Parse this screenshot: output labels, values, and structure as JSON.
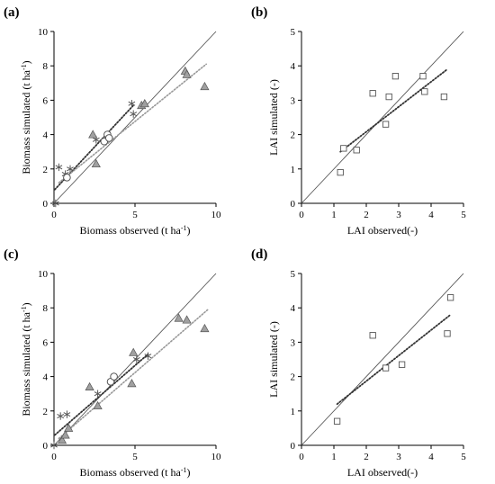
{
  "chart_data": [
    {
      "type": "scatter",
      "panel_label": "(a)",
      "xlabel": "Biomass observed (t ha-1)",
      "ylabel": "Biomass simulated (t ha-1)",
      "xlim": [
        0,
        10
      ],
      "ylim": [
        0,
        10
      ],
      "xticks": [
        "0",
        "5",
        "10"
      ],
      "yticks": [
        "0",
        "2",
        "4",
        "6",
        "8",
        "10"
      ],
      "one_to_one_line": true,
      "series": [
        {
          "marker": "asterisk",
          "points": [
            [
              0.1,
              0
            ],
            [
              0.3,
              2.1
            ],
            [
              0.7,
              1.7
            ],
            [
              1.0,
              2.0
            ],
            [
              2.6,
              3.7
            ],
            [
              4.8,
              5.8
            ],
            [
              4.9,
              5.2
            ]
          ]
        },
        {
          "marker": "circle",
          "points": [
            [
              3.1,
              3.6
            ],
            [
              3.3,
              4.0
            ],
            [
              3.4,
              3.8
            ],
            [
              0.8,
              1.5
            ]
          ]
        },
        {
          "marker": "triangle",
          "points": [
            [
              2.4,
              4.0
            ],
            [
              2.6,
              2.3
            ],
            [
              5.4,
              5.7
            ],
            [
              5.6,
              5.8
            ],
            [
              8.1,
              7.7
            ],
            [
              8.2,
              7.5
            ],
            [
              9.3,
              6.8
            ]
          ]
        }
      ],
      "trendlines": [
        {
          "style": "dark-dotted",
          "x": [
            0.05,
            4.9
          ],
          "y": [
            0.8,
            5.7
          ]
        },
        {
          "style": "light-dotted",
          "x": [
            0.3,
            9.4
          ],
          "y": [
            1.2,
            8.1
          ]
        }
      ]
    },
    {
      "type": "scatter",
      "panel_label": "(b)",
      "xlabel": "LAI observed(-)",
      "ylabel": "LAI simulated (-)",
      "xlim": [
        0,
        5
      ],
      "ylim": [
        0,
        5
      ],
      "xticks": [
        "0",
        "1",
        "2",
        "3",
        "4",
        "5"
      ],
      "yticks": [
        "0",
        "1",
        "2",
        "3",
        "4",
        "5"
      ],
      "one_to_one_line": true,
      "series": [
        {
          "marker": "square",
          "points": [
            [
              1.2,
              0.9
            ],
            [
              1.3,
              1.6
            ],
            [
              1.7,
              1.55
            ],
            [
              2.2,
              3.2
            ],
            [
              2.6,
              2.3
            ],
            [
              2.7,
              3.1
            ],
            [
              2.9,
              3.7
            ],
            [
              3.75,
              3.7
            ],
            [
              3.8,
              3.25
            ],
            [
              4.4,
              3.1
            ]
          ]
        }
      ],
      "trendlines": [
        {
          "style": "dark-dotted",
          "x": [
            1.2,
            4.5
          ],
          "y": [
            1.5,
            3.9
          ]
        }
      ]
    },
    {
      "type": "scatter",
      "panel_label": "(c)",
      "xlabel": "Biomass observed (t ha-1)",
      "ylabel": "Biomass simulated (t ha-1)",
      "xlim": [
        0,
        10
      ],
      "ylim": [
        0,
        10
      ],
      "xticks": [
        "0",
        "5",
        "10"
      ],
      "yticks": [
        "0",
        "2",
        "4",
        "6",
        "8",
        "10"
      ],
      "one_to_one_line": true,
      "series": [
        {
          "marker": "asterisk",
          "points": [
            [
              0,
              0
            ],
            [
              0.4,
              1.7
            ],
            [
              0.8,
              1.8
            ],
            [
              2.7,
              3.0
            ],
            [
              5.1,
              5.0
            ],
            [
              5.8,
              5.2
            ]
          ]
        },
        {
          "marker": "circle",
          "points": [
            [
              3.5,
              3.7
            ],
            [
              3.7,
              4.0
            ]
          ]
        },
        {
          "marker": "triangle",
          "points": [
            [
              0.5,
              0.3
            ],
            [
              0.7,
              0.6
            ],
            [
              0.9,
              1.0
            ],
            [
              2.2,
              3.4
            ],
            [
              2.7,
              2.3
            ],
            [
              4.8,
              3.6
            ],
            [
              4.9,
              5.4
            ],
            [
              7.7,
              7.4
            ],
            [
              8.2,
              7.3
            ],
            [
              9.3,
              6.8
            ]
          ]
        }
      ],
      "trendlines": [
        {
          "style": "dark-dotted",
          "x": [
            0.05,
            5.8
          ],
          "y": [
            0.6,
            5.3
          ]
        },
        {
          "style": "light-dotted",
          "x": [
            0.3,
            9.5
          ],
          "y": [
            0.4,
            7.9
          ]
        }
      ]
    },
    {
      "type": "scatter",
      "panel_label": "(d)",
      "xlabel": "LAI observed(-)",
      "ylabel": "LAI simulated (-)",
      "xlim": [
        0,
        5
      ],
      "ylim": [
        0,
        5
      ],
      "xticks": [
        "0",
        "1",
        "2",
        "3",
        "4",
        "5"
      ],
      "yticks": [
        "0",
        "1",
        "2",
        "3",
        "4",
        "5"
      ],
      "one_to_one_line": true,
      "series": [
        {
          "marker": "square",
          "points": [
            [
              1.1,
              0.7
            ],
            [
              2.2,
              3.2
            ],
            [
              2.6,
              2.25
            ],
            [
              3.1,
              2.35
            ],
            [
              4.5,
              3.25
            ],
            [
              4.6,
              4.3
            ]
          ]
        }
      ],
      "trendlines": [
        {
          "style": "dark-dotted",
          "x": [
            1.1,
            4.6
          ],
          "y": [
            1.2,
            3.8
          ]
        }
      ]
    }
  ],
  "colors": {
    "axis": "#000000",
    "one_to_one": "#555555",
    "trend_dark": "#333333",
    "trend_light": "#999999",
    "marker_fill": "#a0a0a0",
    "marker_stroke": "#555555"
  }
}
